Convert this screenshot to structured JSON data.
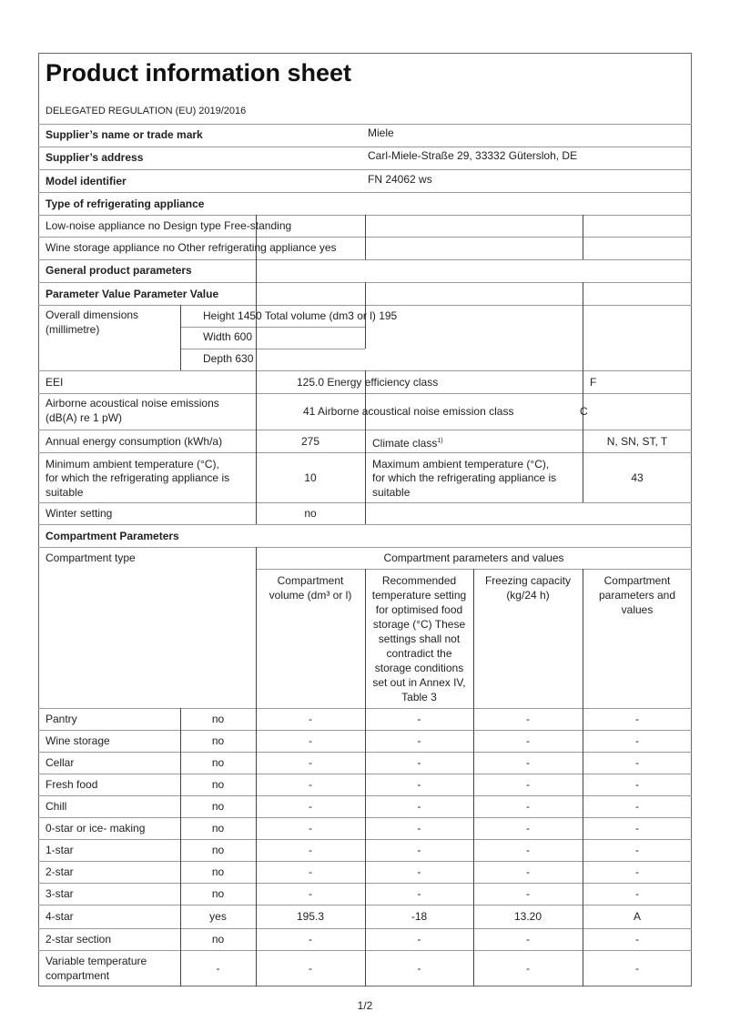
{
  "header": {
    "title": "Product information sheet",
    "regulation": "DELEGATED REGULATION (EU) 2019/2016"
  },
  "supplier": {
    "name_label": "Supplier’s name or trade mark",
    "name_value": "Miele",
    "address_label": "Supplier’s address",
    "address_value": "Carl-Miele-Straße 29, 33332 Gütersloh, DE",
    "model_label": "Model identifier",
    "model_value": "FN 24062 ws"
  },
  "type_section": {
    "heading": "Type of refrigerating appliance",
    "row1": "Low-noise appliance no Design type Free-standing",
    "row2": "Wine storage appliance no Other refrigerating appliance yes"
  },
  "general": {
    "heading": "General product parameters",
    "param_header": "Parameter Value Parameter Value",
    "overall_label_1": "Overall dimensions",
    "overall_label_2": "(millimetre)",
    "height": "Height 1450 Total volume (dm3 or l) 195",
    "width": "Width 600",
    "depth": "Depth 630",
    "eei_label": "EEI",
    "eei_value": "125.0 Energy efficiency class",
    "energy_class": "F",
    "noise_label_1": "Airborne acoustical noise emissions",
    "noise_label_2": "(dB(A) re 1 pW)",
    "noise_value": "41 Airborne acoustical noise emission class",
    "noise_class": "C",
    "annual_label": "Annual energy consumption (kWh/a)",
    "annual_value": "275",
    "climate_label": "Climate class",
    "climate_sup": "1)",
    "climate_value": "N, SN, ST, T",
    "min_label_1": "Minimum ambient temperature (°C),",
    "min_label_2": "for which the refrigerating appliance is",
    "min_label_3": "suitable",
    "min_value": "10",
    "max_label_1": "Maximum ambient temperature (°C),",
    "max_label_2": "for which the refrigerating appliance is",
    "max_label_3": "suitable",
    "max_value": "43",
    "winter_label": "Winter setting",
    "winter_value": "no"
  },
  "compartments": {
    "heading": "Compartment Parameters",
    "type_header": "Compartment type",
    "group_header": "Compartment parameters and values",
    "columns": [
      "Compartment volume (dm³ or l)",
      "Recommended temperature setting for optimised food storage (°C) These settings shall not contradict the storage conditions set out in Annex IV, Table 3",
      "Freezing capacity (kg/24 h)",
      "Compartment parameters and values"
    ],
    "rows": [
      [
        "Pantry",
        "no",
        "-",
        "-",
        "-",
        "-"
      ],
      [
        "Wine storage",
        "no",
        "-",
        "-",
        "-",
        "-"
      ],
      [
        "Cellar",
        "no",
        "-",
        "-",
        "-",
        "-"
      ],
      [
        "Fresh food",
        "no",
        "-",
        "-",
        "-",
        "-"
      ],
      [
        "Chill",
        "no",
        "-",
        "-",
        "-",
        "-"
      ],
      [
        "0-star or ice- making",
        "no",
        "-",
        "-",
        "-",
        "-"
      ],
      [
        "1-star",
        "no",
        "-",
        "-",
        "-",
        "-"
      ],
      [
        "2-star",
        "no",
        "-",
        "-",
        "-",
        "-"
      ],
      [
        "3-star",
        "no",
        "-",
        "-",
        "-",
        "-"
      ],
      [
        "4-star",
        "yes",
        "195.3",
        "-18",
        "13.20",
        "A"
      ],
      [
        "2-star section",
        "no",
        "-",
        "-",
        "-",
        "-"
      ],
      [
        "Variable temperature compartment",
        "-",
        "-",
        "-",
        "-",
        "-"
      ]
    ]
  },
  "footer": {
    "page": "1/2"
  }
}
